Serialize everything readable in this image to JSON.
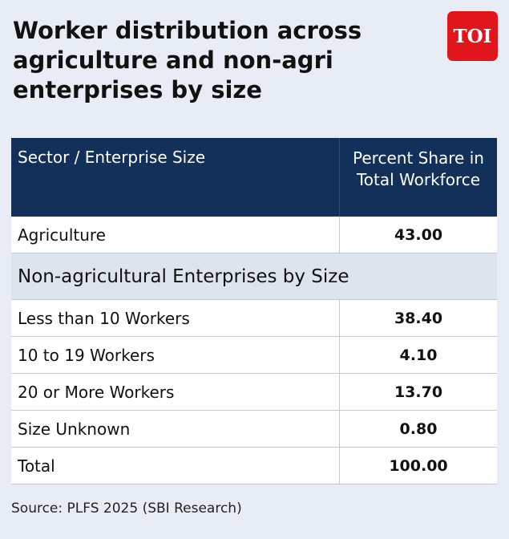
{
  "title": "Worker distribution across agriculture and non-agri enterprises by size",
  "logo_text": "TOI",
  "source": "Source: PLFS 2025 (SBI Research)",
  "colors": {
    "header_bg": "#13305a",
    "section_bg": "#dde4ee",
    "page_bg": "#e8edf5",
    "logo_bg": "#e0161c"
  },
  "table": {
    "headers": [
      "Sector / Enterprise Size",
      "Percent Share in Total Workforce"
    ],
    "agriculture": {
      "label": "Agriculture",
      "value": "43.00"
    },
    "section_label": "Non-agricultural Enterprises by Size",
    "size_rows": [
      {
        "label": "Less than 10 Workers",
        "value": "38.40"
      },
      {
        "label": "10 to 19 Workers",
        "value": "4.10"
      },
      {
        "label": "20 or More Workers",
        "value": "13.70"
      },
      {
        "label": "Size Unknown",
        "value": "0.80"
      }
    ],
    "total": {
      "label": "Total",
      "value": "100.00"
    }
  },
  "chart_data": {
    "type": "table",
    "title": "Worker distribution across agriculture and non-agri enterprises by size",
    "columns": [
      "Sector / Enterprise Size",
      "Percent Share in Total Workforce"
    ],
    "rows": [
      [
        "Agriculture",
        43.0
      ],
      [
        "Less than 10 Workers",
        38.4
      ],
      [
        "10 to 19 Workers",
        4.1
      ],
      [
        "20 or More Workers",
        13.7
      ],
      [
        "Size Unknown",
        0.8
      ],
      [
        "Total",
        100.0
      ]
    ]
  }
}
